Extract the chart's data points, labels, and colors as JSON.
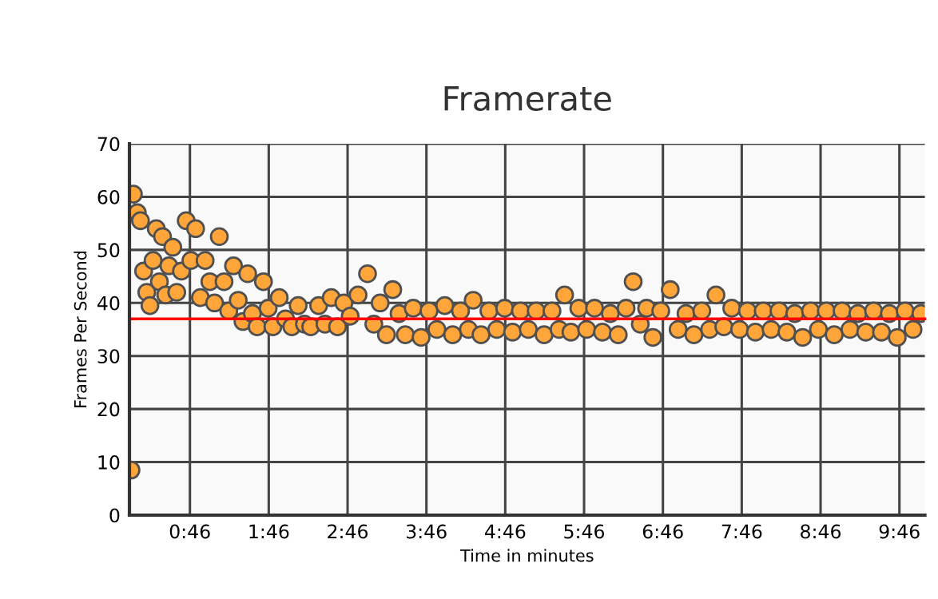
{
  "chart_data": {
    "type": "scatter",
    "title": "Framerate",
    "xlabel": "Time in minutes",
    "ylabel": "Frames Per Second",
    "xlim": [
      0,
      10.09
    ],
    "ylim": [
      0,
      70
    ],
    "xticks": [
      {
        "value": 0.767,
        "label": "0:46"
      },
      {
        "value": 1.767,
        "label": "1:46"
      },
      {
        "value": 2.767,
        "label": "2:46"
      },
      {
        "value": 3.767,
        "label": "3:46"
      },
      {
        "value": 4.767,
        "label": "4:46"
      },
      {
        "value": 5.767,
        "label": "5:46"
      },
      {
        "value": 6.767,
        "label": "6:46"
      },
      {
        "value": 7.767,
        "label": "7:46"
      },
      {
        "value": 8.767,
        "label": "8:46"
      },
      {
        "value": 9.767,
        "label": "9:46"
      }
    ],
    "yticks": [
      0,
      10,
      20,
      30,
      40,
      50,
      60,
      70
    ],
    "grid": true,
    "marker": "circle",
    "legend": false,
    "ref_lines": [
      {
        "axis": "y",
        "value": 37,
        "color": "#ff0000"
      }
    ],
    "series": [
      {
        "color": "#ffa53a",
        "x": [
          0.02,
          0.05,
          0.1,
          0.14,
          0.18,
          0.22,
          0.26,
          0.3,
          0.34,
          0.38,
          0.42,
          0.46,
          0.5,
          0.55,
          0.6,
          0.66,
          0.72,
          0.78,
          0.84,
          0.9,
          0.96,
          1.02,
          1.08,
          1.14,
          1.2,
          1.26,
          1.32,
          1.38,
          1.44,
          1.5,
          1.56,
          1.62,
          1.7,
          1.76,
          1.82,
          1.9,
          1.98,
          2.06,
          2.14,
          2.22,
          2.3,
          2.4,
          2.48,
          2.56,
          2.64,
          2.72,
          2.8,
          2.9,
          3.02,
          3.1,
          3.18,
          3.26,
          3.34,
          3.42,
          3.5,
          3.6,
          3.7,
          3.8,
          3.9,
          4.0,
          4.1,
          4.2,
          4.3,
          4.36,
          4.46,
          4.56,
          4.66,
          4.76,
          4.86,
          4.96,
          5.06,
          5.16,
          5.26,
          5.36,
          5.45,
          5.52,
          5.6,
          5.7,
          5.8,
          5.9,
          6.0,
          6.1,
          6.2,
          6.3,
          6.39,
          6.48,
          6.56,
          6.64,
          6.74,
          6.86,
          6.96,
          7.06,
          7.16,
          7.26,
          7.36,
          7.44,
          7.54,
          7.64,
          7.74,
          7.84,
          7.94,
          8.04,
          8.14,
          8.24,
          8.34,
          8.44,
          8.54,
          8.64,
          8.74,
          8.84,
          8.94,
          9.04,
          9.14,
          9.24,
          9.34,
          9.44,
          9.54,
          9.64,
          9.74,
          9.84,
          9.94,
          10.04
        ],
        "values": [
          8.5,
          60.5,
          57,
          55.5,
          46,
          42,
          39.5,
          48,
          54,
          44,
          52.5,
          41.5,
          47,
          50.5,
          42,
          46,
          55.5,
          48,
          54,
          41,
          48,
          44,
          40,
          52.5,
          44,
          38.5,
          47,
          40.5,
          36.5,
          45.5,
          38,
          35.5,
          44,
          39,
          35.5,
          41,
          37,
          35.5,
          39.5,
          36,
          35.5,
          39.5,
          36,
          41,
          35.5,
          40,
          37.5,
          41.5,
          45.5,
          36,
          40,
          34,
          42.5,
          38,
          34,
          39,
          33.5,
          38.5,
          35,
          39.5,
          34,
          38.5,
          35,
          40.5,
          34,
          38.5,
          35,
          39,
          34.5,
          38.5,
          35,
          38.5,
          34,
          38.5,
          35,
          41.5,
          34.5,
          39,
          35,
          39,
          34.5,
          38,
          34,
          39,
          44,
          36,
          39,
          33.5,
          38.5,
          42.5,
          35,
          38,
          34,
          38.5,
          35,
          41.5,
          35.5,
          39,
          35,
          38.5,
          34.5,
          38.5,
          35,
          38.5,
          34.5,
          38,
          33.5,
          38.5,
          35,
          38.5,
          34,
          38.5,
          35,
          38,
          34.5,
          38.5,
          34.5,
          38,
          33.5,
          38.5,
          35,
          38
        ]
      }
    ]
  }
}
